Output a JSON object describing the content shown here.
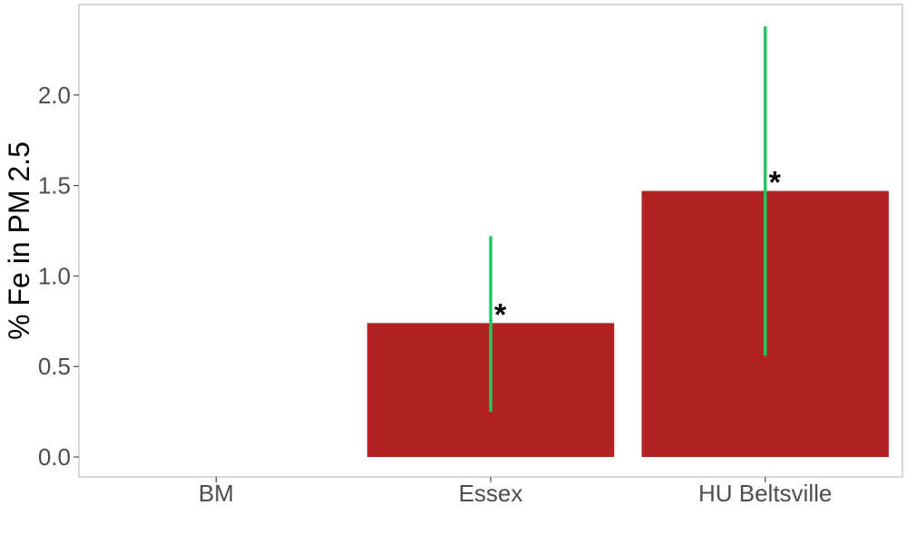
{
  "chart_data": {
    "type": "bar",
    "categories": [
      "BM",
      "Essex",
      "HU Beltsville"
    ],
    "values": [
      0,
      0.74,
      1.47
    ],
    "error_low": [
      null,
      0.25,
      0.56
    ],
    "error_high": [
      null,
      1.22,
      2.38
    ],
    "annotations": [
      "",
      "*",
      "*"
    ],
    "title": "",
    "xlabel": "",
    "ylabel": "% Fe in PM 2.5",
    "ylim": [
      -0.11,
      2.5
    ],
    "yticks": [
      0.0,
      0.5,
      1.0,
      1.5,
      2.0
    ],
    "ytick_labels": [
      "0.0",
      "0.5",
      "1.0",
      "1.5",
      "2.0"
    ],
    "grid": false,
    "legend": "none",
    "bar_color": "#b22222",
    "error_color": "#22c55e",
    "panel_border_color": "#bdbdbd"
  }
}
